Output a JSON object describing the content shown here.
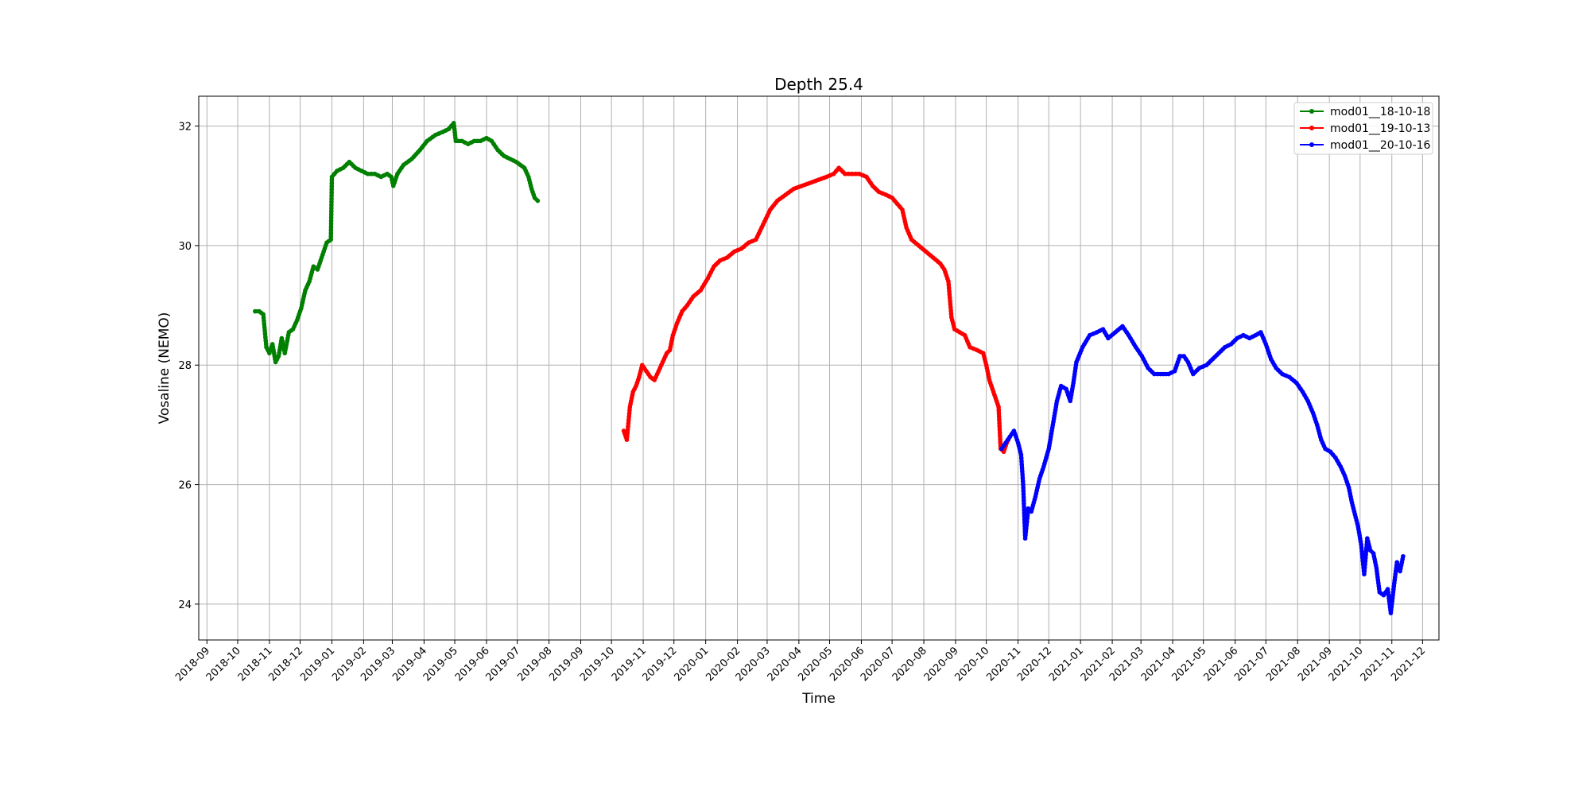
{
  "chart_data": {
    "type": "line",
    "title": "Depth 25.4",
    "xlabel": "Time",
    "ylabel": "Vosaline (NEMO)",
    "xlim": [
      "2018-08-24",
      "2021-12-17"
    ],
    "ylim": [
      23.4,
      32.5
    ],
    "yticks": [
      24,
      26,
      28,
      30,
      32
    ],
    "xticks": [
      "2018-09",
      "2018-10",
      "2018-11",
      "2018-12",
      "2019-01",
      "2019-02",
      "2019-03",
      "2019-04",
      "2019-05",
      "2019-06",
      "2019-07",
      "2019-08",
      "2019-09",
      "2019-10",
      "2019-11",
      "2019-12",
      "2020-01",
      "2020-02",
      "2020-03",
      "2020-04",
      "2020-05",
      "2020-06",
      "2020-07",
      "2020-08",
      "2020-09",
      "2020-10",
      "2020-11",
      "2020-12",
      "2021-01",
      "2021-02",
      "2021-03",
      "2021-04",
      "2021-05",
      "2021-06",
      "2021-07",
      "2021-08",
      "2021-09",
      "2021-10",
      "2021-11",
      "2021-12"
    ],
    "grid": true,
    "legend_position": "top-right",
    "series": [
      {
        "name": "mod01__18-10-18",
        "color": "#008000",
        "points": [
          [
            "2018-10-18",
            28.9
          ],
          [
            "2018-10-22",
            28.9
          ],
          [
            "2018-10-26",
            28.85
          ],
          [
            "2018-10-29",
            28.3
          ],
          [
            "2018-11-01",
            28.2
          ],
          [
            "2018-11-04",
            28.35
          ],
          [
            "2018-11-07",
            28.05
          ],
          [
            "2018-11-10",
            28.15
          ],
          [
            "2018-11-13",
            28.45
          ],
          [
            "2018-11-16",
            28.2
          ],
          [
            "2018-11-20",
            28.55
          ],
          [
            "2018-11-24",
            28.6
          ],
          [
            "2018-11-28",
            28.75
          ],
          [
            "2018-12-02",
            28.95
          ],
          [
            "2018-12-06",
            29.25
          ],
          [
            "2018-12-10",
            29.4
          ],
          [
            "2018-12-14",
            29.65
          ],
          [
            "2018-12-18",
            29.6
          ],
          [
            "2018-12-22",
            29.8
          ],
          [
            "2018-12-27",
            30.05
          ],
          [
            "2018-12-31",
            30.1
          ],
          [
            "2019-01-01",
            31.15
          ],
          [
            "2019-01-06",
            31.25
          ],
          [
            "2019-01-12",
            31.3
          ],
          [
            "2019-01-18",
            31.4
          ],
          [
            "2019-01-24",
            31.3
          ],
          [
            "2019-01-30",
            31.25
          ],
          [
            "2019-02-05",
            31.2
          ],
          [
            "2019-02-12",
            31.2
          ],
          [
            "2019-02-18",
            31.15
          ],
          [
            "2019-02-24",
            31.2
          ],
          [
            "2019-02-28",
            31.15
          ],
          [
            "2019-03-02",
            31.0
          ],
          [
            "2019-03-06",
            31.2
          ],
          [
            "2019-03-12",
            31.35
          ],
          [
            "2019-03-20",
            31.45
          ],
          [
            "2019-03-28",
            31.6
          ],
          [
            "2019-04-04",
            31.75
          ],
          [
            "2019-04-12",
            31.85
          ],
          [
            "2019-04-19",
            31.9
          ],
          [
            "2019-04-25",
            31.95
          ],
          [
            "2019-04-30",
            32.05
          ],
          [
            "2019-05-02",
            31.75
          ],
          [
            "2019-05-08",
            31.75
          ],
          [
            "2019-05-14",
            31.7
          ],
          [
            "2019-05-20",
            31.75
          ],
          [
            "2019-05-26",
            31.75
          ],
          [
            "2019-06-01",
            31.8
          ],
          [
            "2019-06-06",
            31.75
          ],
          [
            "2019-06-12",
            31.6
          ],
          [
            "2019-06-18",
            31.5
          ],
          [
            "2019-06-24",
            31.45
          ],
          [
            "2019-06-30",
            31.4
          ],
          [
            "2019-07-04",
            31.35
          ],
          [
            "2019-07-08",
            31.3
          ],
          [
            "2019-07-12",
            31.15
          ],
          [
            "2019-07-15",
            30.95
          ],
          [
            "2019-07-18",
            30.8
          ],
          [
            "2019-07-21",
            30.75
          ]
        ]
      },
      {
        "name": "mod01__19-10-13",
        "color": "#ff0000",
        "points": [
          [
            "2019-10-13",
            26.9
          ],
          [
            "2019-10-16",
            26.75
          ],
          [
            "2019-10-19",
            27.3
          ],
          [
            "2019-10-22",
            27.55
          ],
          [
            "2019-10-25",
            27.65
          ],
          [
            "2019-10-28",
            27.8
          ],
          [
            "2019-10-31",
            28.0
          ],
          [
            "2019-11-04",
            27.9
          ],
          [
            "2019-11-08",
            27.8
          ],
          [
            "2019-11-12",
            27.75
          ],
          [
            "2019-11-16",
            27.9
          ],
          [
            "2019-11-20",
            28.05
          ],
          [
            "2019-11-24",
            28.2
          ],
          [
            "2019-11-27",
            28.25
          ],
          [
            "2019-11-30",
            28.5
          ],
          [
            "2019-12-04",
            28.7
          ],
          [
            "2019-12-09",
            28.9
          ],
          [
            "2019-12-14",
            29.0
          ],
          [
            "2019-12-20",
            29.15
          ],
          [
            "2019-12-27",
            29.25
          ],
          [
            "2020-01-03",
            29.45
          ],
          [
            "2020-01-09",
            29.65
          ],
          [
            "2020-01-15",
            29.75
          ],
          [
            "2020-01-22",
            29.8
          ],
          [
            "2020-01-29",
            29.9
          ],
          [
            "2020-02-05",
            29.95
          ],
          [
            "2020-02-12",
            30.05
          ],
          [
            "2020-02-19",
            30.1
          ],
          [
            "2020-02-26",
            30.35
          ],
          [
            "2020-03-04",
            30.6
          ],
          [
            "2020-03-11",
            30.75
          ],
          [
            "2020-03-19",
            30.85
          ],
          [
            "2020-03-27",
            30.95
          ],
          [
            "2020-04-04",
            31.0
          ],
          [
            "2020-04-12",
            31.05
          ],
          [
            "2020-04-20",
            31.1
          ],
          [
            "2020-04-28",
            31.15
          ],
          [
            "2020-05-05",
            31.2
          ],
          [
            "2020-05-10",
            31.3
          ],
          [
            "2020-05-16",
            31.2
          ],
          [
            "2020-05-23",
            31.2
          ],
          [
            "2020-05-30",
            31.2
          ],
          [
            "2020-06-06",
            31.15
          ],
          [
            "2020-06-12",
            31.0
          ],
          [
            "2020-06-18",
            30.9
          ],
          [
            "2020-06-25",
            30.85
          ],
          [
            "2020-07-01",
            30.8
          ],
          [
            "2020-07-06",
            30.7
          ],
          [
            "2020-07-11",
            30.6
          ],
          [
            "2020-07-15",
            30.3
          ],
          [
            "2020-07-20",
            30.1
          ],
          [
            "2020-07-27",
            30.0
          ],
          [
            "2020-08-03",
            29.9
          ],
          [
            "2020-08-10",
            29.8
          ],
          [
            "2020-08-17",
            29.7
          ],
          [
            "2020-08-21",
            29.6
          ],
          [
            "2020-08-25",
            29.4
          ],
          [
            "2020-08-28",
            28.8
          ],
          [
            "2020-08-31",
            28.6
          ],
          [
            "2020-09-05",
            28.55
          ],
          [
            "2020-09-10",
            28.5
          ],
          [
            "2020-09-15",
            28.3
          ],
          [
            "2020-09-22",
            28.25
          ],
          [
            "2020-09-28",
            28.2
          ],
          [
            "2020-10-01",
            28.0
          ],
          [
            "2020-10-04",
            27.75
          ],
          [
            "2020-10-07",
            27.6
          ],
          [
            "2020-10-10",
            27.45
          ],
          [
            "2020-10-13",
            27.3
          ],
          [
            "2020-10-15",
            26.6
          ],
          [
            "2020-10-18",
            26.55
          ],
          [
            "2020-10-21",
            26.7
          ],
          [
            "2020-10-24",
            26.8
          ]
        ]
      },
      {
        "name": "mod01__20-10-16",
        "color": "#0000ff",
        "points": [
          [
            "2020-10-16",
            26.6
          ],
          [
            "2020-10-20",
            26.7
          ],
          [
            "2020-10-24",
            26.8
          ],
          [
            "2020-10-28",
            26.9
          ],
          [
            "2020-11-01",
            26.7
          ],
          [
            "2020-11-04",
            26.5
          ],
          [
            "2020-11-06",
            26.0
          ],
          [
            "2020-11-08",
            25.1
          ],
          [
            "2020-11-11",
            25.6
          ],
          [
            "2020-11-14",
            25.55
          ],
          [
            "2020-11-18",
            25.8
          ],
          [
            "2020-11-22",
            26.1
          ],
          [
            "2020-11-26",
            26.3
          ],
          [
            "2020-12-01",
            26.6
          ],
          [
            "2020-12-05",
            27.0
          ],
          [
            "2020-12-09",
            27.4
          ],
          [
            "2020-12-13",
            27.65
          ],
          [
            "2020-12-18",
            27.6
          ],
          [
            "2020-12-22",
            27.4
          ],
          [
            "2020-12-25",
            27.7
          ],
          [
            "2020-12-28",
            28.05
          ],
          [
            "2021-01-03",
            28.3
          ],
          [
            "2021-01-10",
            28.5
          ],
          [
            "2021-01-17",
            28.55
          ],
          [
            "2021-01-23",
            28.6
          ],
          [
            "2021-01-28",
            28.45
          ],
          [
            "2021-02-04",
            28.55
          ],
          [
            "2021-02-11",
            28.65
          ],
          [
            "2021-02-17",
            28.5
          ],
          [
            "2021-02-24",
            28.3
          ],
          [
            "2021-03-02",
            28.15
          ],
          [
            "2021-03-08",
            27.95
          ],
          [
            "2021-03-14",
            27.85
          ],
          [
            "2021-03-20",
            27.85
          ],
          [
            "2021-03-28",
            27.85
          ],
          [
            "2021-04-03",
            27.9
          ],
          [
            "2021-04-08",
            28.15
          ],
          [
            "2021-04-12",
            28.15
          ],
          [
            "2021-04-16",
            28.05
          ],
          [
            "2021-04-21",
            27.85
          ],
          [
            "2021-04-27",
            27.95
          ],
          [
            "2021-05-04",
            28.0
          ],
          [
            "2021-05-10",
            28.1
          ],
          [
            "2021-05-16",
            28.2
          ],
          [
            "2021-05-22",
            28.3
          ],
          [
            "2021-05-28",
            28.35
          ],
          [
            "2021-06-03",
            28.45
          ],
          [
            "2021-06-09",
            28.5
          ],
          [
            "2021-06-15",
            28.45
          ],
          [
            "2021-06-21",
            28.5
          ],
          [
            "2021-06-26",
            28.55
          ],
          [
            "2021-07-01",
            28.35
          ],
          [
            "2021-07-06",
            28.1
          ],
          [
            "2021-07-11",
            27.95
          ],
          [
            "2021-07-17",
            27.85
          ],
          [
            "2021-07-24",
            27.8
          ],
          [
            "2021-07-31",
            27.7
          ],
          [
            "2021-08-06",
            27.55
          ],
          [
            "2021-08-11",
            27.4
          ],
          [
            "2021-08-16",
            27.2
          ],
          [
            "2021-08-20",
            27.0
          ],
          [
            "2021-08-24",
            26.75
          ],
          [
            "2021-08-28",
            26.6
          ],
          [
            "2021-09-02",
            26.55
          ],
          [
            "2021-09-07",
            26.45
          ],
          [
            "2021-09-12",
            26.3
          ],
          [
            "2021-09-16",
            26.15
          ],
          [
            "2021-09-20",
            25.95
          ],
          [
            "2021-09-23",
            25.7
          ],
          [
            "2021-09-26",
            25.5
          ],
          [
            "2021-09-29",
            25.3
          ],
          [
            "2021-10-02",
            25.0
          ],
          [
            "2021-10-05",
            24.5
          ],
          [
            "2021-10-08",
            25.1
          ],
          [
            "2021-10-11",
            24.9
          ],
          [
            "2021-10-14",
            24.85
          ],
          [
            "2021-10-17",
            24.6
          ],
          [
            "2021-10-20",
            24.2
          ],
          [
            "2021-10-24",
            24.15
          ],
          [
            "2021-10-28",
            24.25
          ],
          [
            "2021-10-31",
            23.85
          ],
          [
            "2021-11-03",
            24.3
          ],
          [
            "2021-11-06",
            24.7
          ],
          [
            "2021-11-09",
            24.55
          ],
          [
            "2021-11-12",
            24.8
          ]
        ]
      }
    ]
  }
}
